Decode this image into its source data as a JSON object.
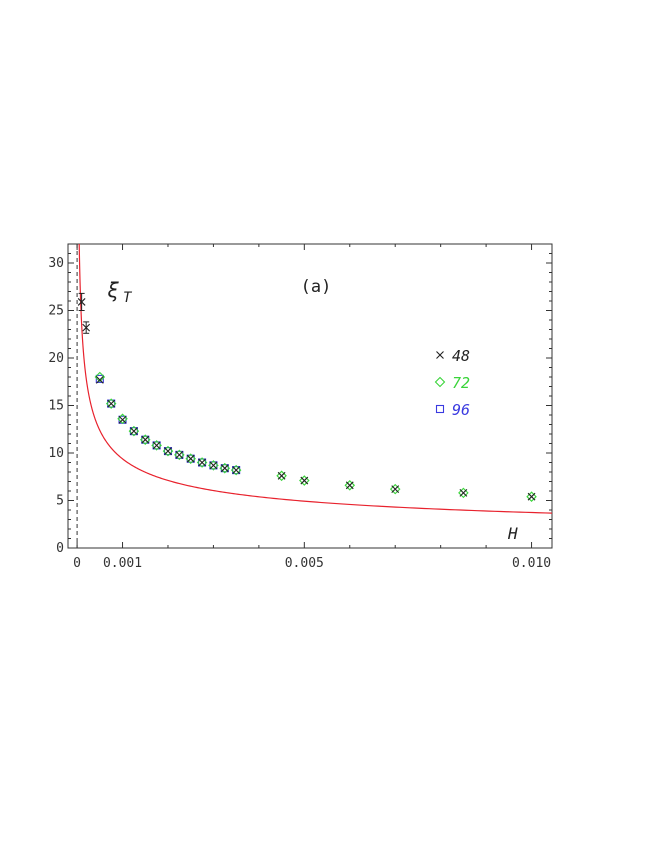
{
  "chart_data": {
    "type": "scatter",
    "title": "",
    "panel_label": "(a)",
    "xlabel": "H",
    "ylabel": "ξ",
    "ylabel_sub": "T",
    "xlim": [
      -0.0002,
      0.01045
    ],
    "ylim": [
      0,
      32
    ],
    "grid": false,
    "legend_position": "right",
    "x_ticks": [
      {
        "value": 0,
        "label": "0"
      },
      {
        "value": 0.001,
        "label": "0.001"
      },
      {
        "value": 0.005,
        "label": "0.005"
      },
      {
        "value": 0.01,
        "label": "0.010"
      }
    ],
    "y_ticks": [
      {
        "value": 0,
        "label": "0"
      },
      {
        "value": 5,
        "label": "5"
      },
      {
        "value": 10,
        "label": "10"
      },
      {
        "value": 15,
        "label": "15"
      },
      {
        "value": 20,
        "label": "20"
      },
      {
        "value": 25,
        "label": "25"
      },
      {
        "value": 30,
        "label": "30"
      }
    ],
    "reference_line": {
      "x": 0,
      "style": "dashed"
    },
    "fit": {
      "color": "#e8222d",
      "form": "power",
      "amplitude": 0.592,
      "exponent": -0.4,
      "x_from": 3.5e-05
    },
    "series": [
      {
        "name": "48",
        "marker": "cross",
        "color": "#222222",
        "points": [
          {
            "x": 0.0001,
            "y": 25.9,
            "err": 0.9
          },
          {
            "x": 0.0002,
            "y": 23.2,
            "err": 0.6
          },
          {
            "x": 0.0005,
            "y": 17.7
          },
          {
            "x": 0.00075,
            "y": 15.2
          },
          {
            "x": 0.001,
            "y": 13.5
          },
          {
            "x": 0.00125,
            "y": 12.3
          },
          {
            "x": 0.0015,
            "y": 11.4
          },
          {
            "x": 0.00175,
            "y": 10.8
          },
          {
            "x": 0.002,
            "y": 10.2
          },
          {
            "x": 0.00225,
            "y": 9.8
          },
          {
            "x": 0.0025,
            "y": 9.4
          },
          {
            "x": 0.00275,
            "y": 9.0
          },
          {
            "x": 0.003,
            "y": 8.7
          },
          {
            "x": 0.00325,
            "y": 8.4
          },
          {
            "x": 0.0035,
            "y": 8.2
          },
          {
            "x": 0.0045,
            "y": 7.6
          },
          {
            "x": 0.005,
            "y": 7.1
          },
          {
            "x": 0.006,
            "y": 6.6
          },
          {
            "x": 0.007,
            "y": 6.2
          },
          {
            "x": 0.0085,
            "y": 5.8
          },
          {
            "x": 0.01,
            "y": 5.4
          }
        ]
      },
      {
        "name": "72",
        "marker": "diamond",
        "color": "#3ad43a",
        "points": [
          {
            "x": 0.0005,
            "y": 18.0
          },
          {
            "x": 0.00075,
            "y": 15.2
          },
          {
            "x": 0.001,
            "y": 13.6
          },
          {
            "x": 0.00125,
            "y": 12.3
          },
          {
            "x": 0.0015,
            "y": 11.4
          },
          {
            "x": 0.00175,
            "y": 10.8
          },
          {
            "x": 0.002,
            "y": 10.2
          },
          {
            "x": 0.00225,
            "y": 9.8
          },
          {
            "x": 0.0025,
            "y": 9.4
          },
          {
            "x": 0.00275,
            "y": 9.0
          },
          {
            "x": 0.003,
            "y": 8.7
          },
          {
            "x": 0.00325,
            "y": 8.4
          },
          {
            "x": 0.0035,
            "y": 8.2
          },
          {
            "x": 0.0045,
            "y": 7.6
          },
          {
            "x": 0.005,
            "y": 7.1
          },
          {
            "x": 0.006,
            "y": 6.6
          },
          {
            "x": 0.007,
            "y": 6.2
          },
          {
            "x": 0.0085,
            "y": 5.8
          },
          {
            "x": 0.01,
            "y": 5.4
          }
        ]
      },
      {
        "name": "96",
        "marker": "square",
        "color": "#3a3ae0",
        "points": [
          {
            "x": 0.0005,
            "y": 17.8
          },
          {
            "x": 0.00075,
            "y": 15.2
          },
          {
            "x": 0.001,
            "y": 13.5
          },
          {
            "x": 0.00125,
            "y": 12.3
          },
          {
            "x": 0.0015,
            "y": 11.4
          },
          {
            "x": 0.00175,
            "y": 10.8
          },
          {
            "x": 0.002,
            "y": 10.2
          },
          {
            "x": 0.00225,
            "y": 9.8
          },
          {
            "x": 0.0025,
            "y": 9.4
          },
          {
            "x": 0.00275,
            "y": 9.0
          },
          {
            "x": 0.003,
            "y": 8.7
          },
          {
            "x": 0.00325,
            "y": 8.4
          },
          {
            "x": 0.0035,
            "y": 8.2
          }
        ]
      }
    ]
  }
}
